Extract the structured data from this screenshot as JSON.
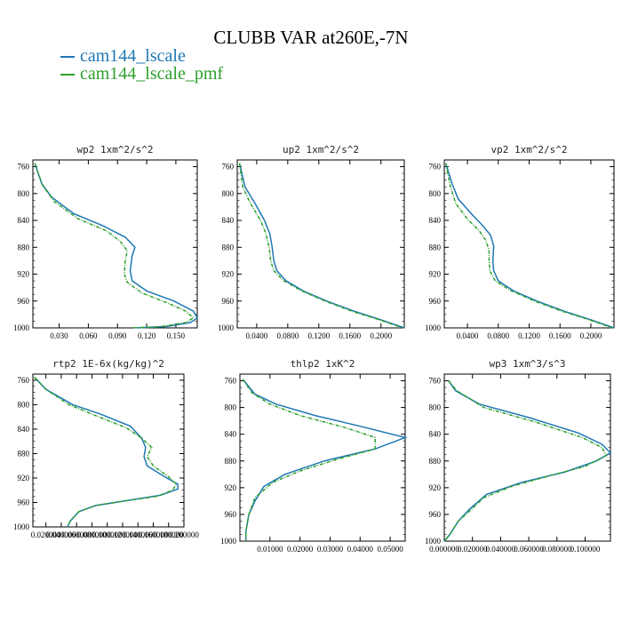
{
  "title": "CLUBB VAR at260E,-7N",
  "legend": [
    {
      "label": "cam144_lscale",
      "color": "#1f77b4"
    },
    {
      "label": "cam144_lscale_pmf",
      "color": "#2ca02c"
    }
  ],
  "chart_data": [
    {
      "type": "line",
      "title": "wp2   1xm^2/s^2",
      "ylim": [
        1000,
        750
      ],
      "yticks": [
        760,
        800,
        840,
        880,
        920,
        960,
        1000
      ],
      "xlim": [
        0.003,
        0.172
      ],
      "xticks": [
        0.03,
        0.06,
        0.09,
        0.12,
        0.15
      ],
      "xtick_labels": [
        "0.030",
        "0.060",
        "0.090",
        "0.120",
        "0.150"
      ],
      "series": [
        {
          "name": "cam144_lscale",
          "points": [
            [
              0.005,
              755
            ],
            [
              0.012,
              785
            ],
            [
              0.022,
              805
            ],
            [
              0.045,
              830
            ],
            [
              0.075,
              848
            ],
            [
              0.098,
              865
            ],
            [
              0.108,
              880
            ],
            [
              0.105,
              893
            ],
            [
              0.103,
              915
            ],
            [
              0.105,
              930
            ],
            [
              0.12,
              945
            ],
            [
              0.148,
              960
            ],
            [
              0.168,
              975
            ],
            [
              0.172,
              985
            ],
            [
              0.165,
              992
            ],
            [
              0.14,
              998
            ],
            [
              0.11,
              1000
            ]
          ]
        },
        {
          "name": "cam144_lscale_pmf",
          "points": [
            [
              0.005,
              755
            ],
            [
              0.013,
              788
            ],
            [
              0.025,
              812
            ],
            [
              0.05,
              838
            ],
            [
              0.078,
              855
            ],
            [
              0.092,
              870
            ],
            [
              0.1,
              885
            ],
            [
              0.098,
              900
            ],
            [
              0.097,
              920
            ],
            [
              0.1,
              932
            ],
            [
              0.115,
              948
            ],
            [
              0.14,
              962
            ],
            [
              0.16,
              975
            ],
            [
              0.168,
              985
            ],
            [
              0.16,
              992
            ],
            [
              0.135,
              998
            ],
            [
              0.105,
              1000
            ]
          ]
        }
      ]
    },
    {
      "type": "line",
      "title": "up2   1xm^2/s^2",
      "ylim": [
        1000,
        750
      ],
      "yticks": [
        760,
        800,
        840,
        880,
        920,
        960,
        1000
      ],
      "xlim": [
        0.015,
        0.23
      ],
      "xticks": [
        0.04,
        0.08,
        0.12,
        0.16,
        0.2
      ],
      "xtick_labels": [
        "0.0400",
        "0.0800",
        "0.1200",
        "0.1600",
        "0.2000"
      ],
      "series": [
        {
          "name": "cam144_lscale",
          "points": [
            [
              0.018,
              755
            ],
            [
              0.025,
              790
            ],
            [
              0.038,
              815
            ],
            [
              0.05,
              840
            ],
            [
              0.057,
              860
            ],
            [
              0.06,
              880
            ],
            [
              0.062,
              900
            ],
            [
              0.066,
              915
            ],
            [
              0.078,
              930
            ],
            [
              0.1,
              945
            ],
            [
              0.13,
              960
            ],
            [
              0.165,
              975
            ],
            [
              0.2,
              988
            ],
            [
              0.23,
              1000
            ]
          ]
        },
        {
          "name": "cam144_lscale_pmf",
          "points": [
            [
              0.018,
              755
            ],
            [
              0.022,
              790
            ],
            [
              0.032,
              815
            ],
            [
              0.045,
              840
            ],
            [
              0.052,
              860
            ],
            [
              0.056,
              880
            ],
            [
              0.058,
              900
            ],
            [
              0.062,
              915
            ],
            [
              0.075,
              930
            ],
            [
              0.098,
              945
            ],
            [
              0.128,
              960
            ],
            [
              0.162,
              975
            ],
            [
              0.198,
              988
            ],
            [
              0.228,
              1000
            ]
          ]
        }
      ]
    },
    {
      "type": "line",
      "title": "vp2   1xm^2/s^2",
      "ylim": [
        1000,
        750
      ],
      "yticks": [
        760,
        800,
        840,
        880,
        920,
        960,
        1000
      ],
      "xlim": [
        0.01,
        0.23
      ],
      "xticks": [
        0.04,
        0.08,
        0.12,
        0.16,
        0.2
      ],
      "xtick_labels": [
        "0.0400",
        "0.0800",
        "0.1200",
        "0.1600",
        "0.2000"
      ],
      "series": [
        {
          "name": "cam144_lscale",
          "points": [
            [
              0.012,
              755
            ],
            [
              0.02,
              785
            ],
            [
              0.028,
              808
            ],
            [
              0.045,
              830
            ],
            [
              0.06,
              848
            ],
            [
              0.07,
              862
            ],
            [
              0.074,
              878
            ],
            [
              0.073,
              900
            ],
            [
              0.074,
              915
            ],
            [
              0.08,
              930
            ],
            [
              0.1,
              945
            ],
            [
              0.13,
              960
            ],
            [
              0.165,
              975
            ],
            [
              0.2,
              988
            ],
            [
              0.23,
              1000
            ]
          ]
        },
        {
          "name": "cam144_lscale_pmf",
          "points": [
            [
              0.012,
              755
            ],
            [
              0.018,
              790
            ],
            [
              0.025,
              815
            ],
            [
              0.04,
              838
            ],
            [
              0.055,
              855
            ],
            [
              0.064,
              870
            ],
            [
              0.068,
              885
            ],
            [
              0.068,
              900
            ],
            [
              0.069,
              915
            ],
            [
              0.076,
              930
            ],
            [
              0.097,
              945
            ],
            [
              0.127,
              960
            ],
            [
              0.162,
              975
            ],
            [
              0.198,
              988
            ],
            [
              0.228,
              1000
            ]
          ]
        }
      ]
    },
    {
      "type": "line",
      "title": "rtp2   1E-6x(kg/kg)^2",
      "ylim": [
        1000,
        750
      ],
      "yticks": [
        760,
        800,
        840,
        880,
        920,
        960,
        1000
      ],
      "xlim": [
        0.003,
        0.2
      ],
      "xticks": [
        0.02,
        0.04,
        0.06,
        0.08,
        0.1,
        0.12,
        0.14,
        0.16,
        0.18,
        0.2
      ],
      "xtick_labels": [
        "0.020000",
        "0.040000",
        "0.060000",
        "0.080000",
        "0.100000",
        "0.120000",
        "0.140000",
        "0.160000",
        "0.180000",
        "0.200000"
      ],
      "series": [
        {
          "name": "cam144_lscale",
          "points": [
            [
              0.005,
              755
            ],
            [
              0.02,
              775
            ],
            [
              0.055,
              800
            ],
            [
              0.09,
              815
            ],
            [
              0.13,
              835
            ],
            [
              0.145,
              855
            ],
            [
              0.15,
              870
            ],
            [
              0.148,
              885
            ],
            [
              0.152,
              900
            ],
            [
              0.175,
              918
            ],
            [
              0.192,
              930
            ],
            [
              0.192,
              938
            ],
            [
              0.17,
              948
            ],
            [
              0.12,
              958
            ],
            [
              0.085,
              965
            ],
            [
              0.063,
              975
            ],
            [
              0.052,
              990
            ],
            [
              0.048,
              1000
            ]
          ]
        },
        {
          "name": "cam144_lscale_pmf",
          "points": [
            [
              0.005,
              755
            ],
            [
              0.02,
              775
            ],
            [
              0.05,
              800
            ],
            [
              0.085,
              818
            ],
            [
              0.125,
              838
            ],
            [
              0.145,
              855
            ],
            [
              0.158,
              870
            ],
            [
              0.152,
              885
            ],
            [
              0.16,
              900
            ],
            [
              0.18,
              918
            ],
            [
              0.19,
              930
            ],
            [
              0.185,
              940
            ],
            [
              0.165,
              950
            ],
            [
              0.12,
              958
            ],
            [
              0.085,
              965
            ],
            [
              0.063,
              975
            ],
            [
              0.052,
              990
            ],
            [
              0.048,
              1000
            ]
          ]
        }
      ]
    },
    {
      "type": "line",
      "title": "thlp2   1xK^2",
      "ylim": [
        1000,
        750
      ],
      "yticks": [
        760,
        800,
        840,
        880,
        920,
        960,
        1000
      ],
      "xlim": [
        0,
        0.055
      ],
      "xticks": [
        0.01,
        0.02,
        0.03,
        0.04,
        0.05
      ],
      "xtick_labels": [
        "0.01000",
        "0.02000",
        "0.03000",
        "0.04000",
        "0.05000"
      ],
      "series": [
        {
          "name": "cam144_lscale",
          "points": [
            [
              0.001,
              758
            ],
            [
              0.005,
              780
            ],
            [
              0.012,
              795
            ],
            [
              0.025,
              812
            ],
            [
              0.04,
              828
            ],
            [
              0.055,
              845
            ],
            [
              0.045,
              862
            ],
            [
              0.028,
              880
            ],
            [
              0.015,
              900
            ],
            [
              0.008,
              918
            ],
            [
              0.005,
              940
            ],
            [
              0.003,
              960
            ],
            [
              0.002,
              985
            ],
            [
              0.002,
              1000
            ]
          ]
        },
        {
          "name": "cam144_lscale_pmf",
          "points": [
            [
              0.001,
              758
            ],
            [
              0.004,
              778
            ],
            [
              0.01,
              795
            ],
            [
              0.02,
              812
            ],
            [
              0.035,
              830
            ],
            [
              0.045,
              845
            ],
            [
              0.045,
              862
            ],
            [
              0.032,
              878
            ],
            [
              0.02,
              895
            ],
            [
              0.011,
              912
            ],
            [
              0.005,
              935
            ],
            [
              0.003,
              960
            ],
            [
              0.002,
              985
            ],
            [
              0.002,
              1000
            ]
          ]
        }
      ]
    },
    {
      "type": "line",
      "title": "wp3   1xm^3/s^3",
      "ylim": [
        1000,
        750
      ],
      "yticks": [
        760,
        800,
        840,
        880,
        920,
        960,
        1000
      ],
      "xlim": [
        0,
        0.118
      ],
      "xticks": [
        0,
        0.02,
        0.04,
        0.06,
        0.08,
        0.1
      ],
      "xtick_labels": [
        "0.000000",
        "0.020000",
        "0.040000",
        "0.060000",
        "0.080000",
        "0.100000"
      ],
      "series": [
        {
          "name": "cam144_lscale",
          "points": [
            [
              0.003,
              760
            ],
            [
              0.008,
              775
            ],
            [
              0.025,
              795
            ],
            [
              0.06,
              815
            ],
            [
              0.095,
              838
            ],
            [
              0.112,
              855
            ],
            [
              0.118,
              868
            ],
            [
              0.108,
              880
            ],
            [
              0.085,
              897
            ],
            [
              0.055,
              912
            ],
            [
              0.03,
              930
            ],
            [
              0.018,
              952
            ],
            [
              0.01,
              970
            ],
            [
              0.004,
              990
            ],
            [
              0,
              1000
            ]
          ]
        },
        {
          "name": "cam144_lscale_pmf",
          "points": [
            [
              0.003,
              760
            ],
            [
              0.009,
              775
            ],
            [
              0.028,
              800
            ],
            [
              0.065,
              822
            ],
            [
              0.098,
              845
            ],
            [
              0.112,
              860
            ],
            [
              0.115,
              872
            ],
            [
              0.1,
              888
            ],
            [
              0.075,
              902
            ],
            [
              0.048,
              918
            ],
            [
              0.028,
              935
            ],
            [
              0.018,
              955
            ],
            [
              0.01,
              970
            ],
            [
              0.004,
              990
            ],
            [
              0,
              1000
            ]
          ]
        }
      ]
    }
  ]
}
